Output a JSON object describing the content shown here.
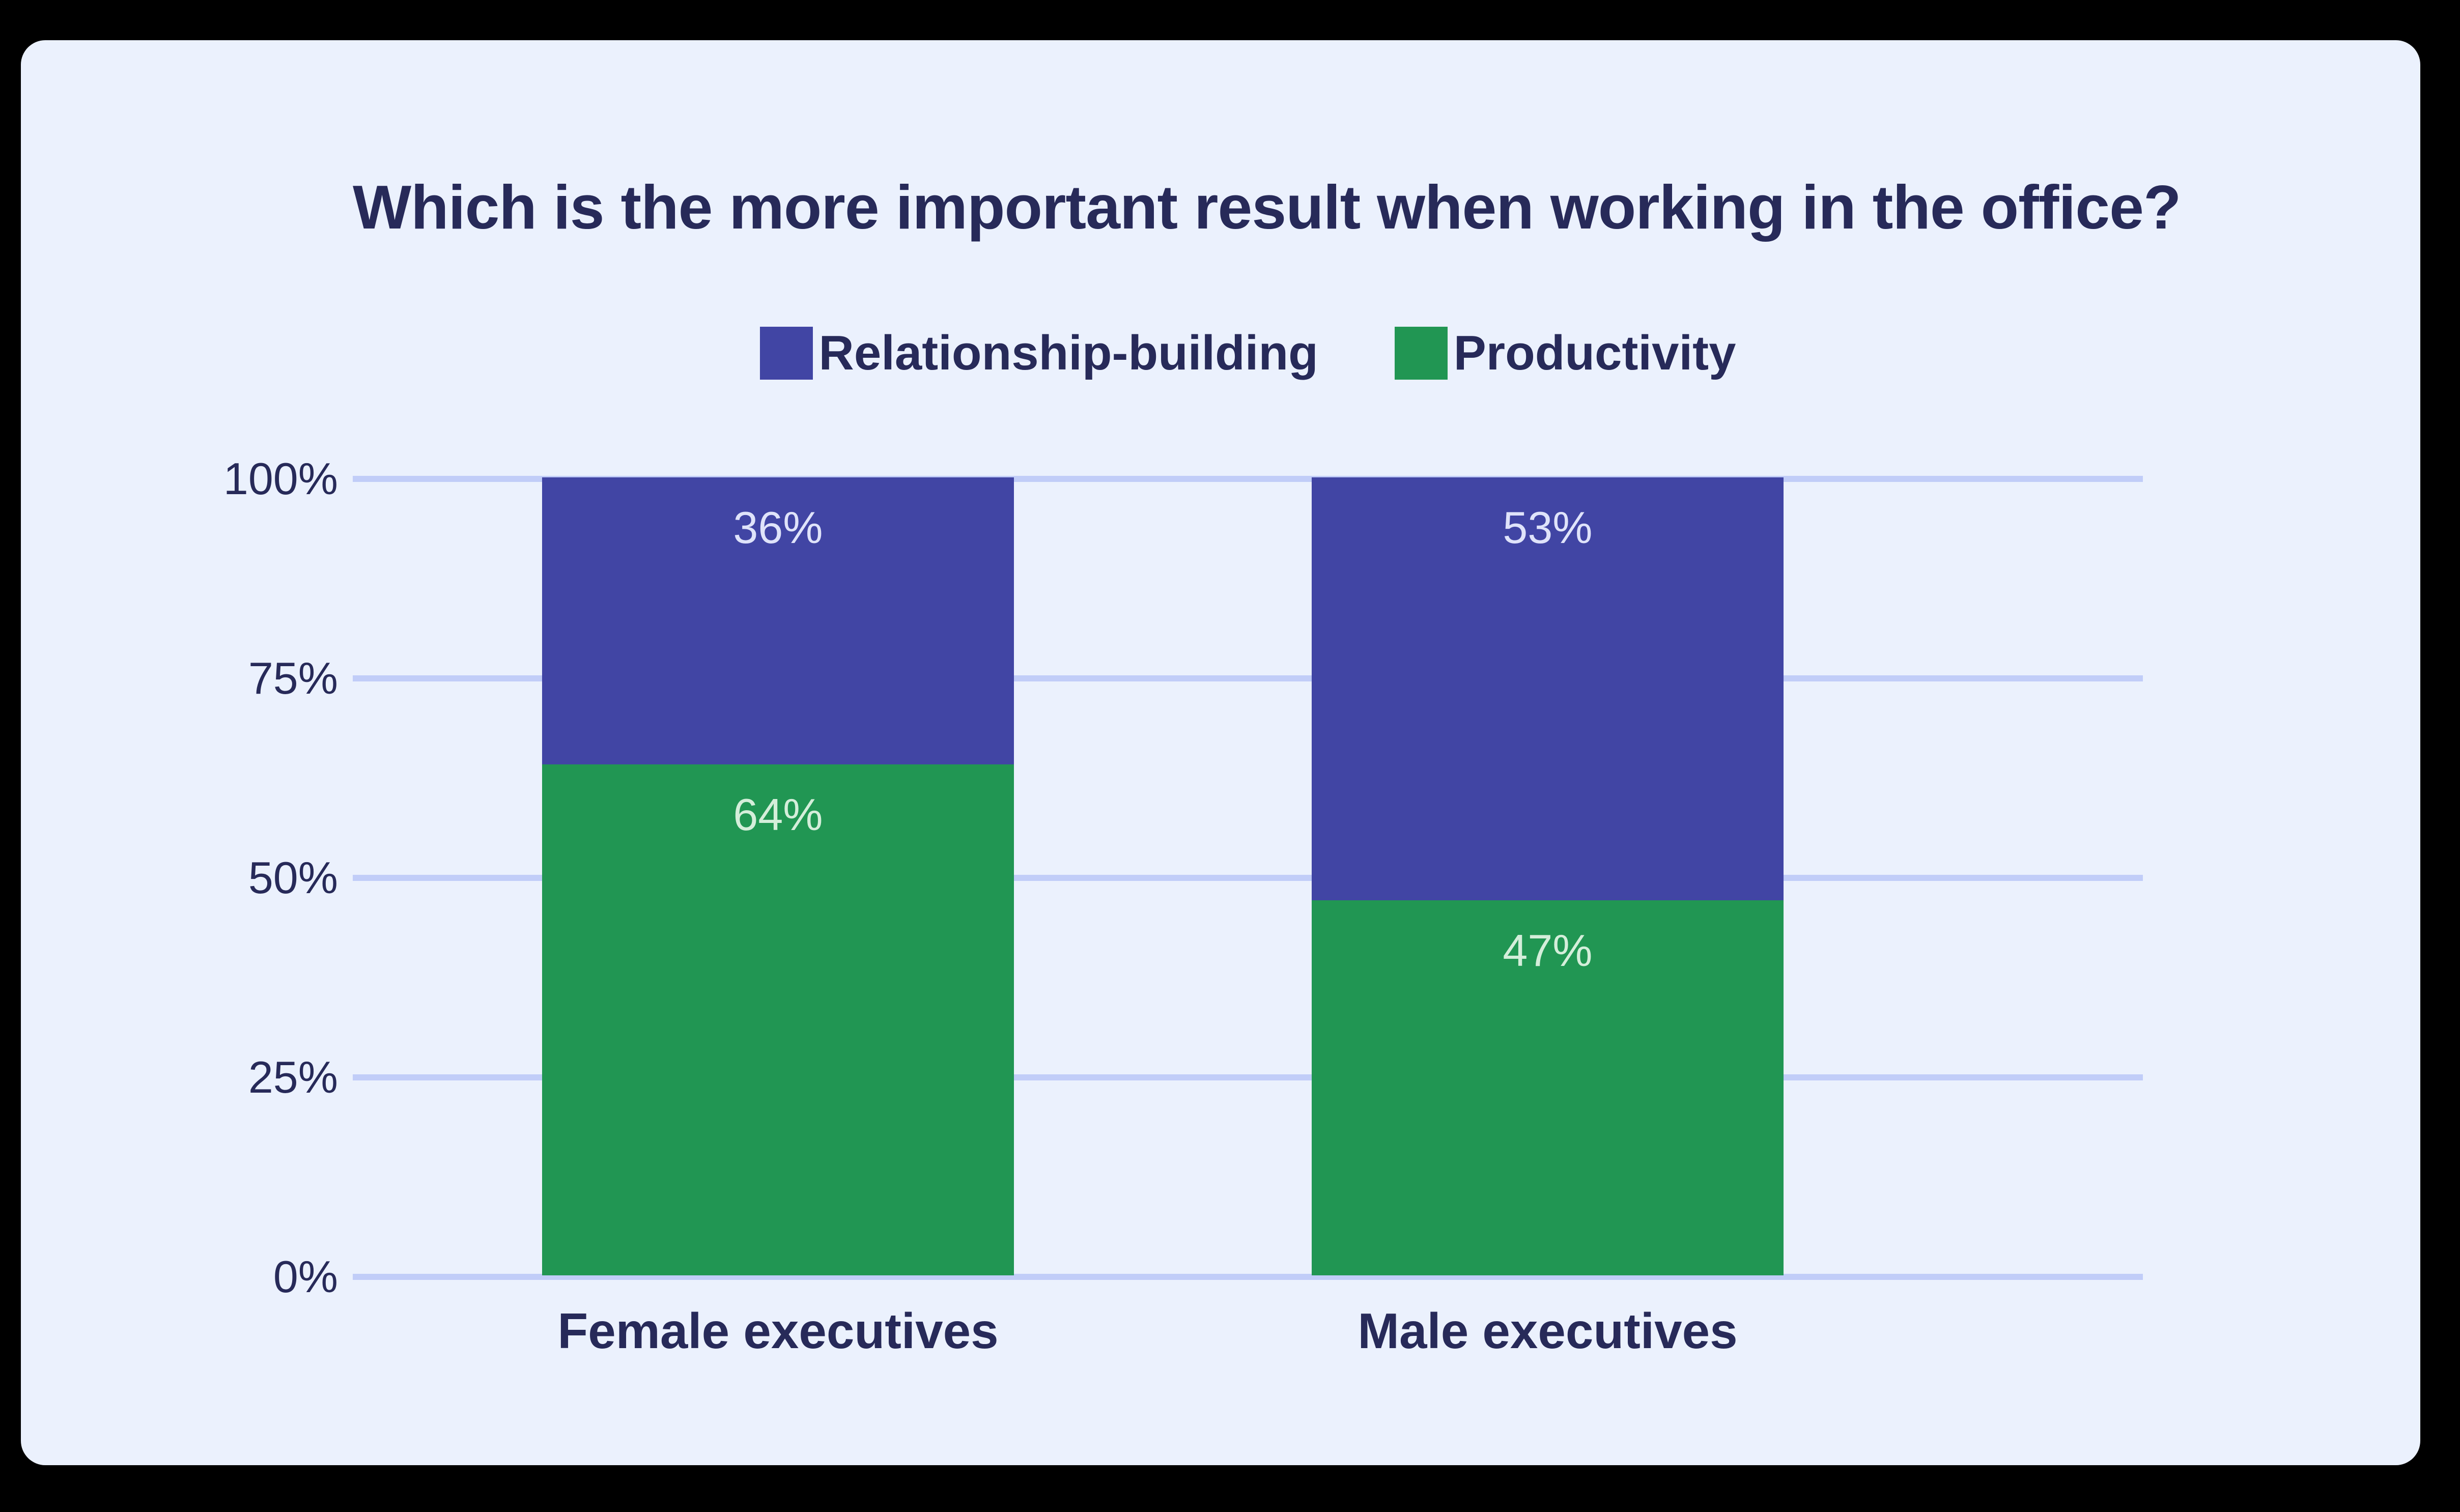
{
  "chart_data": {
    "type": "bar",
    "stacked": true,
    "title": "Which is the more important result when working in the office?",
    "categories": [
      "Female executives",
      "Male executives"
    ],
    "series": [
      {
        "name": "Relationship-building",
        "color": "#4145A4",
        "label_color": "#DFE3FA",
        "values": [
          36,
          53
        ]
      },
      {
        "name": "Productivity",
        "color": "#219653",
        "label_color": "#D4EEDA",
        "values": [
          64,
          47
        ]
      }
    ],
    "value_unit": "%",
    "y_axis": {
      "ticks": [
        "100%",
        "75%",
        "50%",
        "25%",
        "0%"
      ],
      "min": 0,
      "max": 100
    },
    "grid": "horizontal",
    "legend_position": "top",
    "colors": {
      "frame_background": "#000000",
      "card_background": "#EBF1FD",
      "text": "#272A59",
      "gridline": "#C1CDF8"
    }
  }
}
